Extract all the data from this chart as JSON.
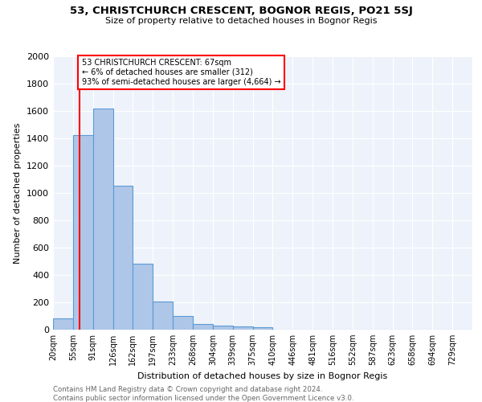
{
  "title1": "53, CHRISTCHURCH CRESCENT, BOGNOR REGIS, PO21 5SJ",
  "title2": "Size of property relative to detached houses in Bognor Regis",
  "xlabel": "Distribution of detached houses by size in Bognor Regis",
  "ylabel": "Number of detached properties",
  "bin_labels": [
    "20sqm",
    "55sqm",
    "91sqm",
    "126sqm",
    "162sqm",
    "197sqm",
    "233sqm",
    "268sqm",
    "304sqm",
    "339sqm",
    "375sqm",
    "410sqm",
    "446sqm",
    "481sqm",
    "516sqm",
    "552sqm",
    "587sqm",
    "623sqm",
    "658sqm",
    "694sqm",
    "729sqm"
  ],
  "bar_heights": [
    85,
    1425,
    1620,
    1050,
    485,
    205,
    100,
    40,
    30,
    22,
    18,
    0,
    0,
    0,
    0,
    0,
    0,
    0,
    0,
    0,
    0
  ],
  "bar_color": "#aec6e8",
  "bar_edge_color": "#5b9bd5",
  "annotation_text": "53 CHRISTCHURCH CRESCENT: 67sqm\n← 6% of detached houses are smaller (312)\n93% of semi-detached houses are larger (4,664) →",
  "annotation_box_color": "white",
  "annotation_box_edge_color": "red",
  "vline_color": "red",
  "ylim": [
    0,
    2000
  ],
  "yticks": [
    0,
    200,
    400,
    600,
    800,
    1000,
    1200,
    1400,
    1600,
    1800,
    2000
  ],
  "background_color": "#eef3fb",
  "grid_color": "white",
  "footer1": "Contains HM Land Registry data © Crown copyright and database right 2024.",
  "footer2": "Contains public sector information licensed under the Open Government Licence v3.0."
}
